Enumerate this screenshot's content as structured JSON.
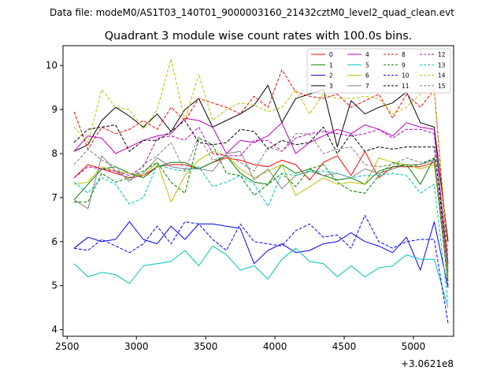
{
  "chart_data": {
    "type": "line",
    "suptitle": "Data file: modeM0/AS1T03_140T01_9000003160_21432cztM0_level2_quad_clean.evt",
    "title": "Quadrant 3 module wise count rates with 100.0s bins.",
    "xlabel": "",
    "ylabel": "",
    "x_offset_label": "+3.0621e8",
    "xlim": [
      2470,
      5290
    ],
    "ylim": [
      3.85,
      10.45
    ],
    "xticks": [
      2500,
      3000,
      3500,
      4000,
      4500,
      5000
    ],
    "yticks": [
      4,
      5,
      6,
      7,
      8,
      9,
      10
    ],
    "x": [
      2550,
      2650,
      2750,
      2850,
      2950,
      3050,
      3150,
      3250,
      3350,
      3450,
      3550,
      3650,
      3750,
      3850,
      3950,
      4050,
      4150,
      4250,
      4350,
      4450,
      4550,
      4650,
      4750,
      4850,
      4950,
      5050,
      5150,
      5250
    ],
    "series": [
      {
        "name": "0",
        "color": "#ff0000",
        "dash": "solid",
        "values": [
          7.45,
          7.75,
          7.65,
          7.55,
          7.45,
          7.5,
          7.7,
          7.75,
          7.75,
          7.65,
          7.8,
          7.9,
          7.85,
          7.75,
          7.7,
          7.85,
          7.75,
          7.4,
          7.8,
          7.95,
          7.5,
          8.05,
          7.45,
          7.7,
          7.7,
          7.7,
          7.8,
          5.1
        ]
      },
      {
        "name": "1",
        "color": "#008000",
        "dash": "solid",
        "values": [
          6.95,
          7.3,
          7.65,
          7.7,
          7.55,
          7.45,
          7.7,
          7.8,
          7.8,
          7.65,
          7.8,
          7.95,
          7.55,
          7.35,
          7.3,
          7.75,
          7.55,
          7.65,
          7.5,
          7.4,
          7.45,
          7.3,
          7.6,
          7.7,
          7.75,
          7.3,
          7.9,
          5.2
        ]
      },
      {
        "name": "2",
        "color": "#0000ff",
        "dash": "solid",
        "values": [
          5.85,
          6.1,
          6.0,
          6.05,
          6.45,
          6.05,
          5.95,
          6.35,
          6.05,
          6.4,
          6.4,
          6.35,
          6.3,
          5.5,
          5.8,
          5.95,
          5.75,
          5.8,
          5.95,
          6.0,
          6.2,
          6.0,
          5.9,
          5.75,
          6.1,
          5.35,
          6.45,
          4.95
        ]
      },
      {
        "name": "3",
        "color": "#000000",
        "dash": "solid",
        "values": [
          8.05,
          8.2,
          8.75,
          9.05,
          8.85,
          8.6,
          8.9,
          8.5,
          9.0,
          9.25,
          8.6,
          8.75,
          8.9,
          9.1,
          9.55,
          8.7,
          9.25,
          9.35,
          9.45,
          8.15,
          9.2,
          8.9,
          9.05,
          9.15,
          9.4,
          8.7,
          8.6,
          6.0
        ]
      },
      {
        "name": "4",
        "color": "#bf00bf",
        "dash": "solid",
        "values": [
          8.05,
          8.4,
          8.35,
          8.0,
          8.15,
          8.3,
          8.4,
          8.45,
          8.8,
          8.75,
          8.6,
          8.0,
          8.3,
          8.25,
          8.4,
          8.7,
          8.0,
          8.25,
          8.4,
          8.55,
          8.45,
          8.65,
          8.55,
          8.4,
          8.7,
          8.6,
          8.55,
          5.3
        ]
      },
      {
        "name": "5",
        "color": "#00bfbf",
        "dash": "solid",
        "values": [
          5.5,
          5.2,
          5.3,
          5.25,
          5.05,
          5.45,
          5.5,
          5.55,
          5.8,
          5.45,
          5.9,
          5.7,
          5.35,
          5.45,
          5.15,
          5.6,
          5.85,
          5.55,
          5.5,
          5.2,
          5.45,
          5.2,
          5.4,
          5.45,
          5.7,
          5.6,
          5.6,
          4.5
        ]
      },
      {
        "name": "6",
        "color": "#bfbf00",
        "dash": "solid",
        "values": [
          7.3,
          7.35,
          7.7,
          7.6,
          7.55,
          7.5,
          7.8,
          6.9,
          7.5,
          7.85,
          8.05,
          7.95,
          7.65,
          7.45,
          7.6,
          7.75,
          7.05,
          7.25,
          7.45,
          7.3,
          7.35,
          7.3,
          7.9,
          7.8,
          7.75,
          7.65,
          7.75,
          5.2
        ]
      },
      {
        "name": "7",
        "color": "#808080",
        "dash": "solid",
        "values": [
          6.95,
          6.75,
          7.95,
          7.6,
          7.4,
          7.55,
          7.9,
          7.7,
          7.65,
          7.65,
          7.6,
          8.0,
          8.05,
          7.4,
          7.65,
          7.2,
          7.5,
          7.6,
          7.5,
          7.55,
          7.45,
          7.65,
          7.55,
          7.65,
          7.75,
          7.75,
          7.85,
          5.3
        ]
      },
      {
        "name": "8",
        "color": "#ff0000",
        "dash": "dashed",
        "values": [
          8.95,
          8.1,
          8.6,
          8.45,
          8.55,
          8.75,
          8.55,
          9.05,
          8.75,
          9.25,
          9.15,
          9.05,
          8.9,
          9.3,
          9.05,
          9.9,
          9.4,
          9.3,
          9.25,
          9.35,
          9.05,
          9.2,
          9.35,
          8.8,
          9.35,
          9.05,
          9.45,
          5.5
        ]
      },
      {
        "name": "9",
        "color": "#008000",
        "dash": "dashed",
        "values": [
          6.9,
          6.9,
          7.55,
          7.35,
          7.45,
          7.6,
          7.8,
          7.35,
          7.1,
          8.35,
          8.2,
          7.55,
          7.5,
          7.05,
          7.3,
          7.55,
          7.25,
          7.65,
          7.75,
          7.35,
          7.15,
          7.1,
          7.5,
          7.8,
          7.7,
          7.75,
          7.9,
          5.0
        ]
      },
      {
        "name": "10",
        "color": "#0000ff",
        "dash": "dashed",
        "values": [
          5.85,
          5.8,
          6.05,
          5.9,
          5.75,
          5.95,
          6.35,
          5.95,
          6.45,
          6.4,
          6.05,
          5.8,
          6.4,
          6.0,
          5.95,
          5.9,
          6.25,
          6.4,
          6.1,
          6.15,
          5.85,
          6.6,
          6.0,
          5.85,
          6.0,
          6.05,
          6.05,
          4.15
        ]
      },
      {
        "name": "11",
        "color": "#000000",
        "dash": "dashed",
        "values": [
          8.25,
          8.55,
          8.6,
          8.65,
          8.05,
          8.3,
          8.3,
          8.5,
          8.75,
          8.25,
          8.2,
          8.25,
          8.55,
          8.5,
          8.1,
          8.3,
          8.2,
          8.25,
          8.6,
          8.0,
          8.45,
          8.05,
          8.15,
          8.1,
          8.15,
          8.15,
          8.15,
          5.4
        ]
      },
      {
        "name": "12",
        "color": "#bf00bf",
        "dash": "dashed",
        "values": [
          7.45,
          7.7,
          7.65,
          7.6,
          7.5,
          7.7,
          8.35,
          8.4,
          8.3,
          8.6,
          8.0,
          7.95,
          7.95,
          8.3,
          8.3,
          8.05,
          8.35,
          8.45,
          8.5,
          8.45,
          8.4,
          8.45,
          8.55,
          8.35,
          8.55,
          8.55,
          8.45,
          5.5
        ]
      },
      {
        "name": "13",
        "color": "#00bfbf",
        "dash": "dashed",
        "values": [
          7.35,
          7.1,
          7.45,
          7.3,
          6.85,
          7.0,
          7.75,
          7.65,
          7.6,
          7.7,
          7.25,
          7.35,
          7.5,
          7.3,
          6.8,
          7.55,
          7.5,
          7.6,
          7.6,
          7.55,
          7.45,
          7.5,
          7.5,
          7.55,
          7.5,
          7.1,
          7.3,
          4.6
        ]
      },
      {
        "name": "14",
        "color": "#bfbf00",
        "dash": "dashed",
        "values": [
          8.6,
          8.25,
          9.45,
          9.05,
          9.0,
          8.55,
          9.0,
          10.15,
          8.75,
          9.8,
          8.75,
          9.0,
          9.15,
          9.1,
          8.95,
          9.05,
          9.45,
          8.9,
          9.35,
          9.25,
          9.25,
          9.3,
          9.25,
          8.9,
          9.05,
          9.35,
          9.5,
          5.7
        ]
      },
      {
        "name": "15",
        "color": "#808080",
        "dash": "dashed",
        "values": [
          7.75,
          8.1,
          7.85,
          7.7,
          7.35,
          7.75,
          7.95,
          8.25,
          7.6,
          8.4,
          7.85,
          7.95,
          7.8,
          7.6,
          8.15,
          8.05,
          8.45,
          8.45,
          8.0,
          8.1,
          8.15,
          7.75,
          7.7,
          7.75,
          7.9,
          7.8,
          7.85,
          5.4
        ]
      }
    ]
  }
}
